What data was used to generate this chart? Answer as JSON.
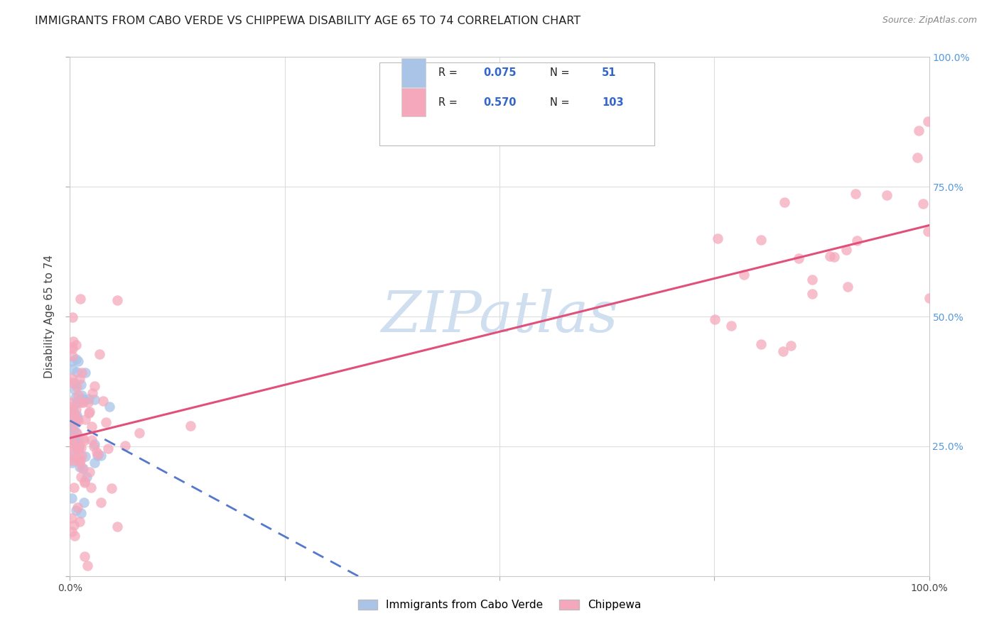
{
  "title": "IMMIGRANTS FROM CABO VERDE VS CHIPPEWA DISABILITY AGE 65 TO 74 CORRELATION CHART",
  "source": "Source: ZipAtlas.com",
  "ylabel": "Disability Age 65 to 74",
  "watermark": "ZIPatlas",
  "legend_label_blue": "Immigrants from Cabo Verde",
  "legend_label_pink": "Chippewa",
  "xlim": [
    0,
    1.0
  ],
  "ylim": [
    0,
    1.0
  ],
  "blue_color": "#aac4e8",
  "pink_color": "#f5a8bc",
  "blue_line_color": "#5577cc",
  "pink_line_color": "#e0507a",
  "background_color": "#ffffff",
  "grid_color": "#dddddd",
  "title_fontsize": 11.5,
  "axis_label_fontsize": 11,
  "tick_fontsize": 10,
  "right_tick_color": "#5599dd",
  "legend_text_color": "#3366cc",
  "legend_label_color": "#3366cc",
  "watermark_color": "#d0dff0"
}
